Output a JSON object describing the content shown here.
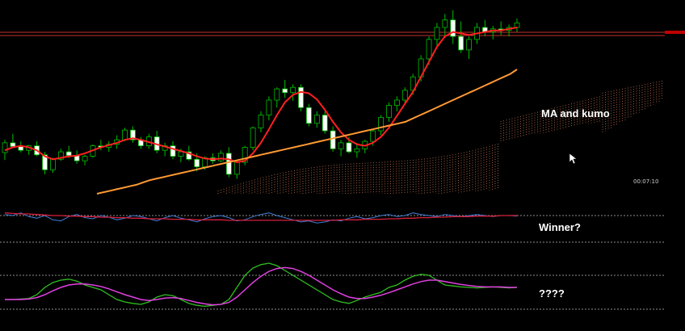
{
  "chart_data": {
    "type": "candlestick",
    "x": [
      1,
      2,
      3,
      4,
      5,
      6,
      7,
      8,
      9,
      10,
      11,
      12,
      13,
      14,
      15,
      16,
      17,
      18,
      19,
      20,
      21,
      22,
      23,
      24,
      25,
      26,
      27,
      28,
      29,
      30,
      31,
      32,
      33,
      34,
      35,
      36,
      37,
      38,
      39,
      40,
      41,
      42,
      43,
      44,
      45,
      46,
      47,
      48,
      49,
      50,
      51,
      52,
      53,
      54,
      55,
      56,
      57,
      58,
      59,
      60,
      61,
      62,
      63,
      64,
      65,
      66,
      67,
      68,
      69,
      70,
      71,
      72,
      73,
      74,
      75,
      76,
      77,
      78,
      79,
      80
    ],
    "ohlc": [
      [
        95,
        112,
        85,
        108
      ],
      [
        108,
        120,
        102,
        103
      ],
      [
        103,
        110,
        95,
        98
      ],
      [
        98,
        105,
        92,
        104
      ],
      [
        104,
        110,
        90,
        92
      ],
      [
        92,
        96,
        66,
        72
      ],
      [
        72,
        88,
        68,
        86
      ],
      [
        86,
        100,
        84,
        96
      ],
      [
        96,
        104,
        88,
        91
      ],
      [
        91,
        98,
        80,
        84
      ],
      [
        84,
        92,
        78,
        90
      ],
      [
        90,
        106,
        88,
        104
      ],
      [
        104,
        112,
        98,
        102
      ],
      [
        102,
        110,
        96,
        106
      ],
      [
        106,
        118,
        100,
        112
      ],
      [
        112,
        128,
        110,
        125
      ],
      [
        125,
        130,
        108,
        112
      ],
      [
        112,
        116,
        100,
        104
      ],
      [
        104,
        120,
        100,
        116
      ],
      [
        116,
        124,
        94,
        98
      ],
      [
        98,
        108,
        90,
        104
      ],
      [
        104,
        110,
        86,
        90
      ],
      [
        90,
        100,
        82,
        96
      ],
      [
        96,
        104,
        84,
        86
      ],
      [
        86,
        94,
        70,
        76
      ],
      [
        76,
        90,
        72,
        88
      ],
      [
        88,
        94,
        80,
        84
      ],
      [
        84,
        98,
        82,
        94
      ],
      [
        94,
        102,
        62,
        66
      ],
      [
        66,
        84,
        60,
        82
      ],
      [
        82,
        104,
        78,
        102
      ],
      [
        102,
        130,
        98,
        128
      ],
      [
        128,
        150,
        122,
        145
      ],
      [
        145,
        170,
        138,
        165
      ],
      [
        165,
        182,
        155,
        180
      ],
      [
        180,
        192,
        168,
        175
      ],
      [
        175,
        186,
        164,
        182
      ],
      [
        182,
        186,
        150,
        155
      ],
      [
        155,
        160,
        130,
        134
      ],
      [
        134,
        150,
        128,
        145
      ],
      [
        145,
        150,
        120,
        124
      ],
      [
        124,
        130,
        96,
        100
      ],
      [
        100,
        112,
        90,
        108
      ],
      [
        108,
        116,
        94,
        96
      ],
      [
        96,
        108,
        88,
        100
      ],
      [
        100,
        112,
        94,
        110
      ],
      [
        110,
        126,
        104,
        124
      ],
      [
        124,
        145,
        118,
        142
      ],
      [
        142,
        162,
        136,
        158
      ],
      [
        158,
        170,
        150,
        165
      ],
      [
        165,
        182,
        160,
        178
      ],
      [
        178,
        200,
        172,
        196
      ],
      [
        196,
        225,
        190,
        220
      ],
      [
        220,
        250,
        212,
        246
      ],
      [
        246,
        268,
        238,
        262
      ],
      [
        262,
        280,
        248,
        272
      ],
      [
        272,
        285,
        240,
        250
      ],
      [
        250,
        270,
        228,
        232
      ],
      [
        232,
        250,
        220,
        246
      ],
      [
        246,
        268,
        240,
        262
      ],
      [
        262,
        272,
        250,
        256
      ],
      [
        256,
        264,
        246,
        260
      ],
      [
        260,
        270,
        252,
        258
      ],
      [
        258,
        266,
        250,
        262
      ],
      [
        262,
        274,
        256,
        268
      ]
    ],
    "ma_fast": [
      98,
      102,
      104,
      102,
      98,
      90,
      86,
      88,
      90,
      91,
      94,
      98,
      102,
      105,
      108,
      112,
      114,
      112,
      109,
      106,
      103,
      100,
      97,
      94,
      90,
      87,
      86,
      87,
      86,
      82,
      84,
      94,
      108,
      126,
      145,
      162,
      172,
      176,
      174,
      166,
      152,
      136,
      122,
      112,
      106,
      104,
      108,
      116,
      128,
      144,
      160,
      176,
      196,
      216,
      236,
      250,
      256,
      254,
      252,
      254,
      256,
      258,
      258,
      260,
      262
    ],
    "ma_slow": [
      40,
      42,
      44,
      46,
      48,
      50,
      52,
      55,
      58,
      60,
      62,
      64,
      66,
      68,
      70,
      72,
      74,
      76,
      78,
      80,
      82,
      84,
      86,
      88,
      90,
      92,
      94,
      96,
      98,
      100,
      102,
      104,
      106,
      108,
      110,
      112,
      114,
      116,
      118,
      120,
      122,
      124,
      126,
      128,
      130,
      132,
      134,
      136,
      140,
      144,
      148,
      152,
      156,
      160,
      164,
      168,
      172,
      176,
      180,
      184,
      188,
      192,
      196,
      200,
      206
    ],
    "ylim": [
      40,
      290
    ],
    "legend": [],
    "grid": false
  },
  "osc1": {
    "blue": [
      0.52,
      0.5,
      0.55,
      0.48,
      0.45,
      0.5,
      0.42,
      0.4,
      0.48,
      0.52,
      0.46,
      0.44,
      0.5,
      0.47,
      0.42,
      0.45,
      0.5,
      0.48,
      0.44,
      0.4,
      0.46,
      0.5,
      0.45,
      0.42,
      0.38,
      0.44,
      0.48,
      0.5,
      0.46,
      0.4,
      0.42,
      0.48,
      0.52,
      0.55,
      0.5,
      0.46,
      0.42,
      0.38,
      0.4,
      0.36,
      0.38,
      0.42,
      0.4,
      0.45,
      0.48,
      0.44,
      0.46,
      0.5,
      0.52,
      0.48,
      0.5,
      0.55,
      0.52,
      0.5,
      0.48,
      0.52,
      0.5,
      0.48,
      0.5,
      0.52,
      0.5,
      0.48,
      0.5,
      0.5,
      0.49
    ],
    "red": [
      0.55,
      0.54,
      0.53,
      0.53,
      0.52,
      0.51,
      0.5,
      0.5,
      0.49,
      0.49,
      0.48,
      0.48,
      0.47,
      0.47,
      0.46,
      0.46,
      0.45,
      0.45,
      0.44,
      0.44,
      0.44,
      0.43,
      0.43,
      0.43,
      0.42,
      0.42,
      0.42,
      0.42,
      0.41,
      0.41,
      0.41,
      0.41,
      0.41,
      0.41,
      0.41,
      0.41,
      0.41,
      0.41,
      0.41,
      0.41,
      0.41,
      0.41,
      0.42,
      0.42,
      0.42,
      0.43,
      0.43,
      0.43,
      0.44,
      0.44,
      0.45,
      0.45,
      0.46,
      0.46,
      0.47,
      0.47,
      0.48,
      0.48,
      0.48,
      0.49,
      0.49,
      0.49,
      0.5,
      0.5,
      0.5
    ]
  },
  "osc2": {
    "green": [
      0.2,
      0.2,
      0.21,
      0.22,
      0.3,
      0.45,
      0.55,
      0.6,
      0.62,
      0.58,
      0.5,
      0.45,
      0.4,
      0.3,
      0.2,
      0.15,
      0.12,
      0.1,
      0.15,
      0.25,
      0.3,
      0.28,
      0.2,
      0.12,
      0.08,
      0.06,
      0.08,
      0.1,
      0.2,
      0.45,
      0.7,
      0.85,
      0.92,
      0.95,
      0.9,
      0.8,
      0.7,
      0.6,
      0.5,
      0.4,
      0.3,
      0.2,
      0.15,
      0.12,
      0.18,
      0.25,
      0.3,
      0.35,
      0.45,
      0.5,
      0.6,
      0.68,
      0.72,
      0.7,
      0.6,
      0.5,
      0.48,
      0.46,
      0.45,
      0.44,
      0.45,
      0.46,
      0.45,
      0.44,
      0.45
    ],
    "magenta": [
      0.2,
      0.2,
      0.2,
      0.21,
      0.24,
      0.3,
      0.38,
      0.45,
      0.5,
      0.52,
      0.52,
      0.5,
      0.47,
      0.42,
      0.36,
      0.3,
      0.25,
      0.2,
      0.18,
      0.2,
      0.23,
      0.24,
      0.22,
      0.18,
      0.14,
      0.11,
      0.09,
      0.1,
      0.14,
      0.25,
      0.4,
      0.55,
      0.68,
      0.78,
      0.84,
      0.86,
      0.84,
      0.78,
      0.7,
      0.6,
      0.5,
      0.4,
      0.32,
      0.25,
      0.22,
      0.22,
      0.25,
      0.29,
      0.34,
      0.4,
      0.46,
      0.52,
      0.57,
      0.6,
      0.6,
      0.57,
      0.54,
      0.51,
      0.49,
      0.47,
      0.46,
      0.46,
      0.46,
      0.45,
      0.45
    ]
  },
  "annotations": {
    "ma_kumo": "MA and kumo",
    "winner": "Winner?",
    "question": "????"
  },
  "timer": "00:07:10",
  "colors": {
    "bull_body": "#ffffff",
    "bear_body": "#000000",
    "wick": "#00c000",
    "ma_fast": "#ff2020",
    "ma_slow": "#ff9933",
    "kumo": "#cc7755",
    "osc_blue": "#3f7fd7",
    "osc_red": "#d8203c",
    "osc_green": "#30c020",
    "osc_magenta": "#e040e0",
    "hline": "#c03030",
    "price_marker": "#c00000"
  }
}
